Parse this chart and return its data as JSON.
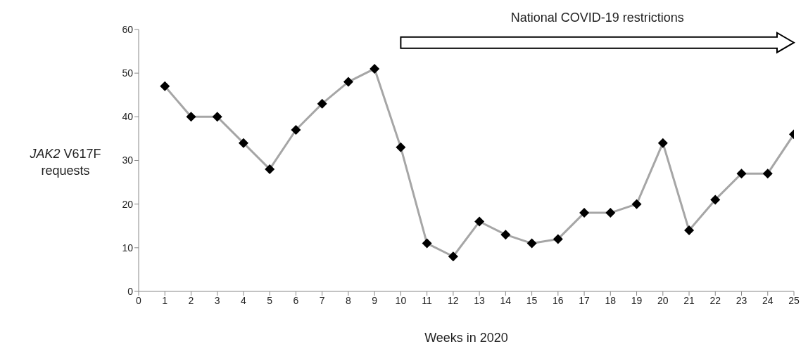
{
  "chart_data": {
    "type": "line",
    "xlabel": "Weeks in 2020",
    "ylabel": "JAK2 V617F requests",
    "x": [
      1,
      2,
      3,
      4,
      5,
      6,
      7,
      8,
      9,
      10,
      11,
      12,
      13,
      14,
      15,
      16,
      17,
      18,
      19,
      20,
      21,
      22,
      23,
      24,
      25
    ],
    "series": [
      {
        "color": "#a6a6a6",
        "values": [
          47,
          40,
          40,
          34,
          28,
          37,
          43,
          48,
          51,
          33,
          11,
          8,
          16,
          13,
          11,
          12,
          18,
          18,
          20,
          34,
          14,
          21,
          27,
          27,
          36
        ]
      }
    ],
    "xlim": [
      0,
      25
    ],
    "xticks": [
      0,
      1,
      2,
      3,
      4,
      5,
      6,
      7,
      8,
      9,
      10,
      11,
      12,
      13,
      14,
      15,
      16,
      17,
      18,
      19,
      20,
      21,
      22,
      23,
      24,
      25
    ],
    "ylim": [
      0,
      60
    ],
    "yticks": [
      0,
      10,
      20,
      30,
      40,
      50,
      60
    ],
    "annotations": [
      "National COVID-19 restrictions"
    ],
    "grid": false,
    "legend": false,
    "marker": "diamond",
    "line_style": "solid"
  }
}
